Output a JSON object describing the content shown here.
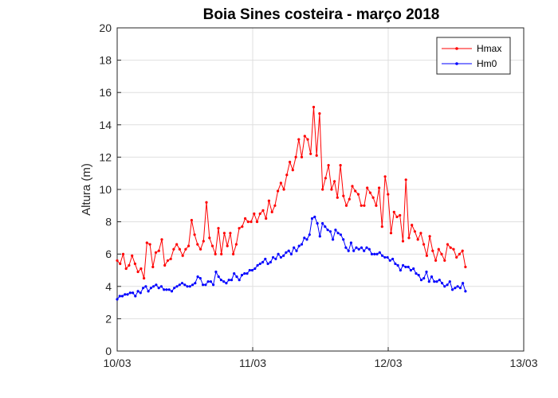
{
  "chart_data": {
    "type": "line",
    "title": "Boia Sines costeira - março 2018",
    "xlabel": "",
    "ylabel": "Altura (m)",
    "ylim": [
      0,
      20
    ],
    "yticks": [
      0,
      2,
      4,
      6,
      8,
      10,
      12,
      14,
      16,
      18,
      20
    ],
    "xlim": [
      0,
      3
    ],
    "xticks": [
      0,
      1,
      2,
      3
    ],
    "xtick_labels": [
      "10/03",
      "11/03",
      "12/03",
      "13/03"
    ],
    "x_unit": "days since 10/03 00:00",
    "grid": true,
    "legend_location": "top-right",
    "series": [
      {
        "name": "Hmax",
        "color": "#ff0000",
        "y": [
          5.6,
          5.4,
          6.0,
          5.1,
          5.3,
          5.9,
          5.4,
          4.9,
          5.1,
          4.5,
          6.7,
          6.6,
          5.2,
          6.1,
          6.2,
          6.9,
          5.3,
          5.6,
          5.7,
          6.3,
          6.6,
          6.3,
          5.9,
          6.3,
          6.5,
          8.1,
          7.2,
          6.6,
          6.3,
          6.8,
          9.2,
          7.0,
          6.5,
          6.0,
          7.6,
          6.0,
          7.3,
          6.5,
          7.3,
          6.0,
          6.6,
          7.6,
          7.7,
          8.2,
          8.0,
          8.0,
          8.5,
          8.0,
          8.5,
          8.7,
          8.2,
          9.3,
          8.6,
          9.0,
          9.9,
          10.4,
          10.0,
          10.9,
          11.7,
          11.2,
          12.0,
          13.1,
          12.0,
          13.3,
          13.1,
          12.2,
          15.1,
          12.1,
          14.7,
          10.0,
          10.7,
          11.5,
          10.0,
          10.5,
          9.5,
          11.5,
          9.6,
          9.0,
          9.4,
          10.2,
          9.9,
          9.7,
          9.0,
          9.0,
          10.1,
          9.8,
          9.5,
          9.0,
          10.1,
          7.7,
          10.8,
          9.7,
          7.3,
          8.6,
          8.3,
          8.4,
          6.8,
          10.6,
          7.0,
          7.8,
          7.4,
          6.9,
          7.3,
          6.6,
          5.9,
          7.1,
          6.2,
          5.6,
          6.3,
          6.0,
          5.6,
          6.6,
          6.4,
          6.3,
          5.8
        ],
        "y_extra_note": "last value 6.0, then 5.2",
        "tail": [
          6.0,
          6.2,
          5.2
        ]
      },
      {
        "name": "Hm0",
        "color": "#0000ff",
        "y": [
          3.2,
          3.4,
          3.4,
          3.5,
          3.5,
          3.6,
          3.6,
          3.4,
          3.7,
          3.6,
          3.9,
          4.0,
          3.7,
          3.9,
          4.0,
          4.1,
          3.9,
          4.0,
          3.8,
          3.8,
          3.8,
          3.7,
          3.9,
          4.0,
          4.1,
          4.2,
          4.1,
          4.0,
          4.0,
          4.1,
          4.2,
          4.6,
          4.5,
          4.1,
          4.1,
          4.3,
          4.3,
          4.1,
          4.9,
          4.6,
          4.4,
          4.3,
          4.2,
          4.4,
          4.4,
          4.8,
          4.6,
          4.4,
          4.7,
          4.8,
          4.8,
          5.0,
          5.0,
          5.1,
          5.3,
          5.4,
          5.5,
          5.7,
          5.4,
          5.5,
          5.8,
          5.7,
          6.0,
          5.8,
          5.9,
          6.1,
          6.2,
          6.0,
          6.4,
          6.2,
          6.5,
          6.6,
          7.0,
          6.9,
          7.2,
          8.2,
          8.3,
          7.9,
          7.1,
          7.9,
          7.7,
          7.5,
          7.4,
          6.9,
          7.5,
          7.3,
          7.2,
          6.9,
          6.4,
          6.2,
          6.7,
          6.2,
          6.4,
          6.3,
          6.4,
          6.2,
          6.4,
          6.3,
          6.0,
          6.0,
          6.0,
          6.1,
          5.9,
          5.8,
          5.8,
          5.6,
          5.7,
          5.4,
          5.3,
          5.0,
          5.3,
          5.2,
          5.2,
          5.0,
          5.1,
          4.8,
          4.7,
          4.4,
          4.5,
          4.9,
          4.3,
          4.6,
          4.3,
          4.3,
          4.4,
          4.2,
          4.0,
          4.1,
          4.3,
          3.8,
          3.9,
          4.0,
          3.9,
          4.2,
          3.7
        ]
      }
    ]
  }
}
